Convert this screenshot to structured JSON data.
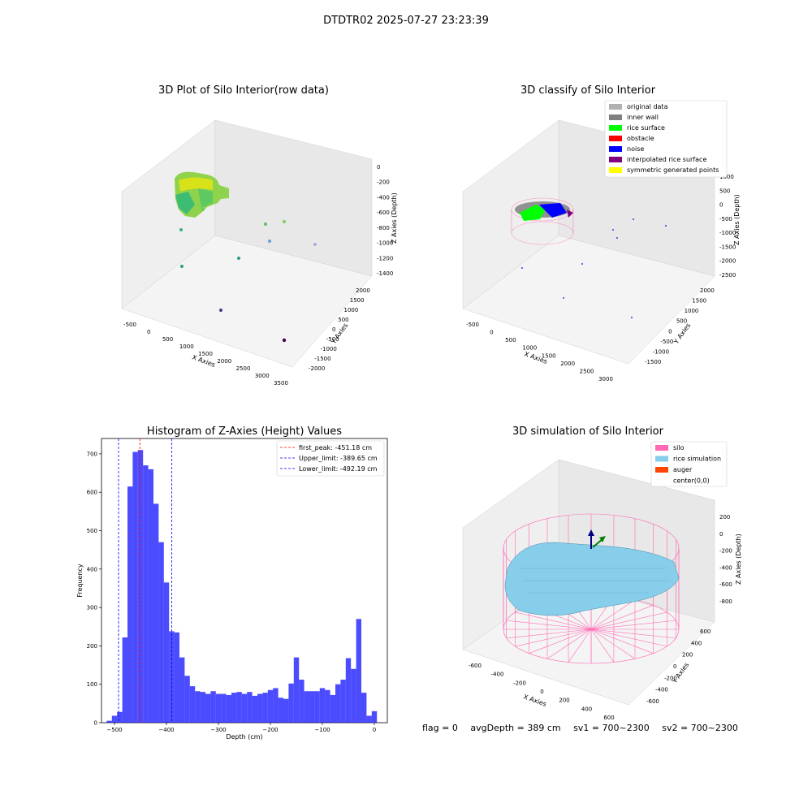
{
  "suptitle": "DTDTR02 2025-07-27 23:23:39",
  "panels": {
    "raw": {
      "title": "3D Plot of Silo Interior(row data)",
      "xlabel": "X Axies",
      "ylabel": "Y Axies",
      "zlabel": "Z Axies (Depth)",
      "xticks": [
        "-500",
        "0",
        "500",
        "1000",
        "1500",
        "2000",
        "2500",
        "3000",
        "3500"
      ],
      "yticks": [
        "2000",
        "1500",
        "1000",
        "500",
        "0",
        "-500",
        "-1000",
        "-1500",
        "-2000"
      ],
      "zticks": [
        "0",
        "-200",
        "-400",
        "-600",
        "-800",
        "-1000",
        "-1200",
        "-1400"
      ]
    },
    "classify": {
      "title": "3D classify of Silo Interior",
      "xlabel": "X Axies",
      "ylabel": "Y Axies",
      "zlabel": "Z Axies (Depth)",
      "xticks": [
        "-500",
        "0",
        "500",
        "1000",
        "1500",
        "2000",
        "2500",
        "3000"
      ],
      "yticks": [
        "2000",
        "1500",
        "1000",
        "500",
        "0",
        "-500",
        "-1000",
        "-1500"
      ],
      "zticks": [
        "1000",
        "500",
        "0",
        "-500",
        "-1000",
        "-1500",
        "-2000",
        "-2500"
      ],
      "legend": [
        {
          "label": "original data",
          "color": "#b0b0b0"
        },
        {
          "label": "inner wall",
          "color": "#808080"
        },
        {
          "label": "rice surface",
          "color": "#00ff00"
        },
        {
          "label": "obstacle",
          "color": "#ff0000"
        },
        {
          "label": "noise",
          "color": "#0000ff"
        },
        {
          "label": "interpolated rice surface",
          "color": "#800080"
        },
        {
          "label": "symmetric generated points",
          "color": "#ffff00"
        }
      ]
    },
    "simulation": {
      "title": "3D simulation of Silo Interior",
      "xlabel": "X Axies",
      "ylabel": "Y Axies",
      "zlabel": "Z Axies (Depth)",
      "xticks": [
        "-600",
        "-400",
        "-200",
        "0",
        "200",
        "400",
        "600"
      ],
      "yticks": [
        "600",
        "400",
        "200",
        "0",
        "-200",
        "-400",
        "-600"
      ],
      "zticks": [
        "200",
        "0",
        "-200",
        "-400",
        "-600",
        "-800"
      ],
      "legend": [
        {
          "label": "silo",
          "color": "#ff69b4"
        },
        {
          "label": "rice simulation",
          "color": "#87ceeb"
        },
        {
          "label": "auger",
          "color": "#ff4500"
        },
        {
          "label": "center(0,0)",
          "color": ""
        }
      ]
    }
  },
  "chart_data": [
    {
      "type": "bar",
      "title": "Histogram of Z-Axies (Height) Values",
      "xlabel": "Depth (cm)",
      "ylabel": "Frequency",
      "xlim": [
        -525,
        25
      ],
      "ylim": [
        0,
        740
      ],
      "xticks": [
        -500,
        -400,
        -300,
        -200,
        -100,
        0
      ],
      "yticks": [
        0,
        100,
        200,
        300,
        400,
        500,
        600,
        700
      ],
      "bin_width": 10,
      "bins_start": -515,
      "values": [
        5,
        18,
        28,
        222,
        615,
        705,
        710,
        670,
        660,
        570,
        470,
        365,
        238,
        235,
        170,
        122,
        95,
        82,
        80,
        75,
        82,
        75,
        75,
        72,
        78,
        80,
        75,
        80,
        70,
        75,
        78,
        85,
        90,
        65,
        62,
        102,
        170,
        112,
        82,
        82,
        82,
        90,
        85,
        72,
        100,
        112,
        168,
        140,
        270,
        78,
        18,
        30
      ],
      "color": "#0000ff",
      "annotations": [
        {
          "label": "first_peak: -451.18 cm",
          "x": -451.18,
          "color": "#ff0000"
        },
        {
          "label": "Upper_limit: -389.65 cm",
          "x": -389.65,
          "color": "#0000ff"
        },
        {
          "label": "Lower_limit: -492.19 cm",
          "x": -492.19,
          "color": "#0000ff"
        }
      ],
      "legend_position": "top-right"
    }
  ],
  "status": {
    "flag": "flag = 0",
    "avg_depth": "avgDepth = 389 cm",
    "sv1": "sv1 = 700~2300",
    "sv2": "sv2 = 700~2300"
  }
}
